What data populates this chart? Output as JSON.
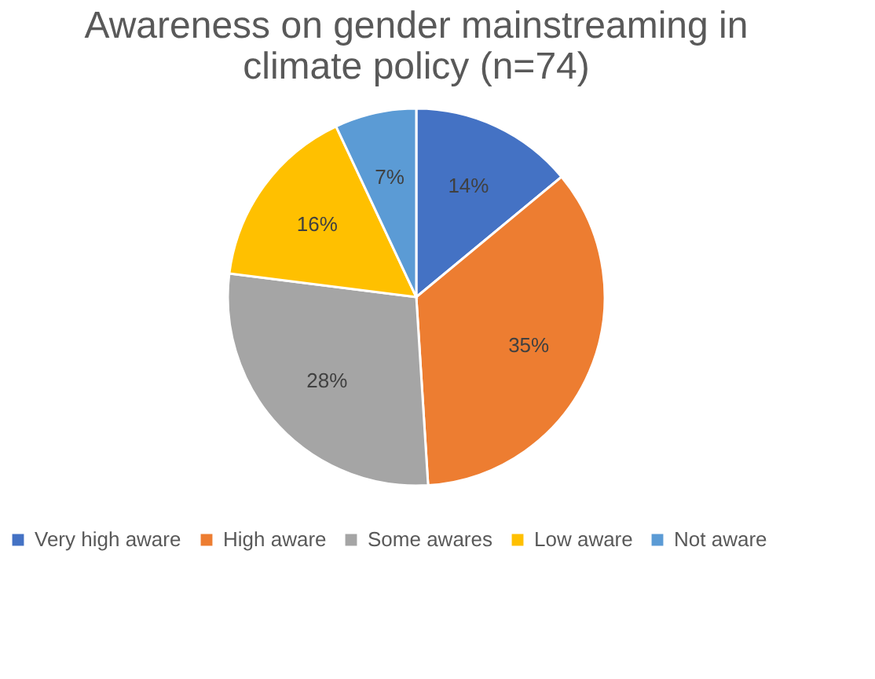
{
  "chart_data": {
    "type": "pie",
    "title": "Awareness on gender mainstreaming in climate policy (n=74)",
    "categories": [
      "Very high aware",
      "High aware",
      "Some awares",
      "Low aware",
      "Not aware"
    ],
    "values": [
      14,
      35,
      28,
      16,
      7
    ],
    "colors": [
      "#4472c4",
      "#ed7d31",
      "#a5a5a5",
      "#ffc000",
      "#5b9bd5"
    ],
    "value_labels": [
      "14%",
      "35%",
      "28%",
      "16%",
      "7%"
    ],
    "legend": "bottom"
  }
}
